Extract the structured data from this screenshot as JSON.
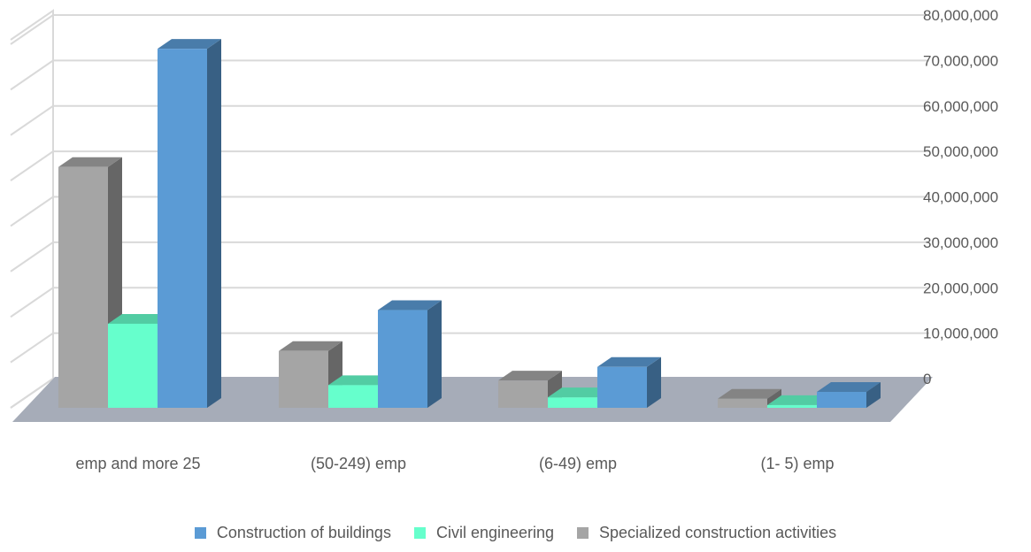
{
  "chart_data": {
    "type": "bar",
    "categories": [
      "emp and more 25",
      "(50-249) emp",
      "(6-49) emp",
      "(1- 5) emp"
    ],
    "series": [
      {
        "name": "Specialized construction activities",
        "color": "#a5a5a5",
        "values": [
          53000000,
          12500000,
          6000000,
          2000000
        ]
      },
      {
        "name": "Civil engineering",
        "color": "#66ffcc",
        "values": [
          18500000,
          5000000,
          2300000,
          600000
        ]
      },
      {
        "name": "Construction of buildings",
        "color": "#5b9bd5",
        "values": [
          79000000,
          21500000,
          9000000,
          3500000
        ]
      }
    ],
    "legend_order": [
      2,
      1,
      0
    ],
    "yticks": [
      "80,000,000",
      "70,000,000",
      "60,000,000",
      "50,000,000",
      "40,000,000",
      "30,000,000",
      "20,000,000",
      "10,000,000",
      "0"
    ],
    "ylim": [
      0,
      80000000
    ],
    "grid": true,
    "legend_position": "bottom",
    "floor_color": "#a6acb8"
  }
}
